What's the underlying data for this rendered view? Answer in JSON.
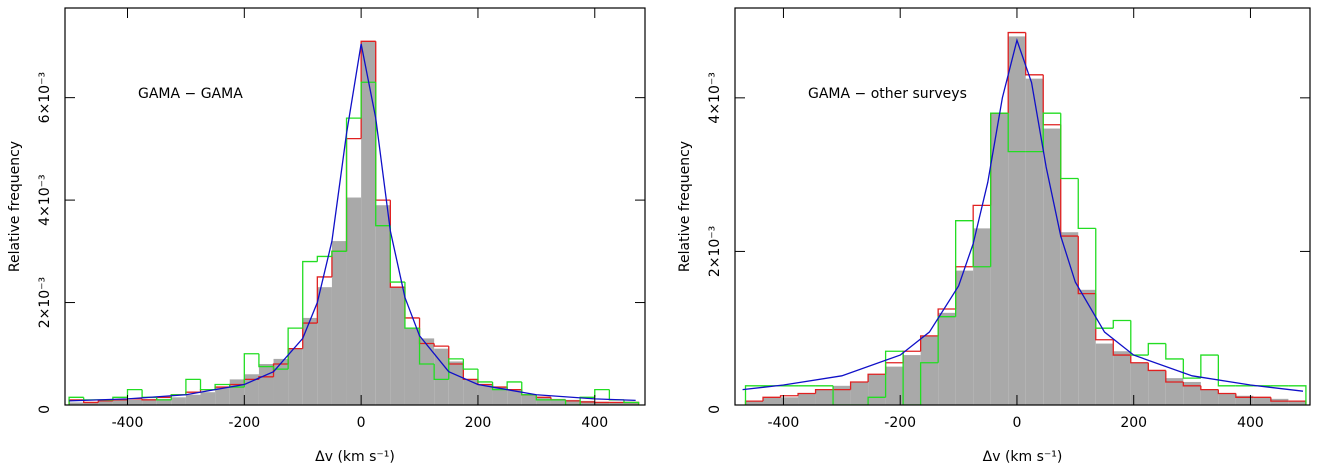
{
  "chart_data": [
    {
      "type": "histogram",
      "annotation": "GAMA − GAMA",
      "xlabel": "Δv (km s⁻¹)",
      "ylabel": "Relative frequency",
      "xlim": [
        -507,
        486
      ],
      "ylim": [
        0,
        0.00775
      ],
      "xticks": [
        -400,
        -200,
        0,
        200,
        400
      ],
      "yticks": [
        0,
        {
          "value": 0.002,
          "label": "2×10⁻³"
        },
        {
          "value": 0.004,
          "label": "4×10⁻³"
        },
        {
          "value": 0.006,
          "label": "6×10⁻³"
        }
      ],
      "bins": [
        -500,
        -475,
        -450,
        -425,
        -400,
        -375,
        -350,
        -325,
        -300,
        -275,
        -250,
        -225,
        -200,
        -175,
        -150,
        -125,
        -100,
        -75,
        -50,
        -25,
        0,
        25,
        50,
        75,
        100,
        125,
        150,
        175,
        200,
        225,
        250,
        275,
        300,
        325,
        350,
        375,
        400,
        425,
        450,
        475
      ],
      "series": [
        {
          "color": "#a9a9a9",
          "fill": true,
          "values": [
            5e-05,
            5e-05,
            8e-05,
            0.0001,
            0.0001,
            0.00012,
            0.00012,
            0.00015,
            0.0002,
            0.00025,
            0.00035,
            0.0005,
            0.0006,
            0.0008,
            0.0009,
            0.0011,
            0.0017,
            0.0023,
            0.0032,
            0.00405,
            0.0071,
            0.0039,
            0.0023,
            0.0015,
            0.0013,
            0.0011,
            0.00085,
            0.0005,
            0.0004,
            0.00035,
            0.0003,
            0.0002,
            0.00015,
            0.00012,
            0.0001,
            8e-05,
            6e-05,
            5e-05,
            5e-05
          ]
        },
        {
          "color": "#e02020",
          "fill": false,
          "values": [
            0.0001,
            5e-05,
            8e-05,
            0.0001,
            0.00012,
            0.0001,
            0.00015,
            0.0002,
            0.00025,
            0.0003,
            0.00035,
            0.0004,
            0.0005,
            0.00055,
            0.0008,
            0.0011,
            0.0016,
            0.0025,
            0.003,
            0.0052,
            0.0071,
            0.004,
            0.0023,
            0.0017,
            0.0012,
            0.00115,
            0.0008,
            0.0005,
            0.0004,
            0.00035,
            0.0003,
            0.0002,
            0.00015,
            0.0001,
            8e-05,
            6e-05,
            5e-05,
            5e-05,
            5e-05
          ]
        },
        {
          "color": "#22dd22",
          "fill": false,
          "values": [
            0.00015,
            0.0001,
            0.0001,
            0.00015,
            0.0003,
            0.00015,
            0.0001,
            0.0002,
            0.0005,
            0.0003,
            0.0004,
            0.00035,
            0.001,
            0.00075,
            0.0007,
            0.0015,
            0.0028,
            0.0029,
            0.003,
            0.0056,
            0.0063,
            0.0035,
            0.0024,
            0.0015,
            0.0008,
            0.0005,
            0.0009,
            0.0007,
            0.00045,
            0.0003,
            0.00045,
            0.0002,
            0.0001,
            0.0001,
            0,
            0.00015,
            0.0003,
            0.0001,
            5e-05
          ]
        }
      ],
      "curve": {
        "color": "#1010c8",
        "x": [
          -500,
          -400,
          -300,
          -200,
          -150,
          -100,
          -75,
          -50,
          -25,
          0,
          25,
          50,
          75,
          100,
          150,
          200,
          300,
          400,
          470
        ],
        "values": [
          8e-05,
          0.00012,
          0.0002,
          0.0004,
          0.00065,
          0.0013,
          0.002,
          0.0032,
          0.0053,
          0.00705,
          0.0056,
          0.0034,
          0.0021,
          0.00135,
          0.00065,
          0.0004,
          0.0002,
          0.00012,
          9e-05
        ]
      }
    },
    {
      "type": "histogram",
      "annotation": "GAMA − other surveys",
      "xlabel": "Δv (km s⁻¹)",
      "ylabel": "Relative frequency",
      "xlim": [
        -483,
        502
      ],
      "ylim": [
        0,
        0.00517
      ],
      "xticks": [
        -400,
        -200,
        0,
        200,
        400
      ],
      "yticks": [
        0,
        {
          "value": 0.002,
          "label": "2×10⁻³"
        },
        {
          "value": 0.004,
          "label": "4×10⁻³"
        }
      ],
      "bins": [
        -465,
        -435,
        -405,
        -375,
        -345,
        -315,
        -285,
        -255,
        -225,
        -195,
        -165,
        -135,
        -105,
        -75,
        -45,
        -15,
        15,
        45,
        75,
        105,
        135,
        165,
        195,
        225,
        255,
        285,
        315,
        345,
        375,
        405,
        435,
        465,
        495
      ],
      "series": [
        {
          "color": "#a9a9a9",
          "fill": true,
          "values": [
            5e-05,
            0.0001,
            0.0001,
            0.00015,
            0.0002,
            0.00025,
            0.0003,
            0.0004,
            0.0005,
            0.00065,
            0.0009,
            0.0012,
            0.00175,
            0.0023,
            0.0038,
            0.0048,
            0.00425,
            0.0036,
            0.00225,
            0.0015,
            0.0008,
            0.0007,
            0.00055,
            0.00045,
            0.00035,
            0.0003,
            0.0002,
            0.00015,
            0.00012,
            0.0001,
            8e-05,
            5e-05
          ]
        },
        {
          "color": "#e02020",
          "fill": false,
          "values": [
            5e-05,
            0.0001,
            0.00012,
            0.00015,
            0.0002,
            0.0002,
            0.0003,
            0.0004,
            0.00055,
            0.0007,
            0.0009,
            0.00125,
            0.0018,
            0.0026,
            0.0038,
            0.00485,
            0.0043,
            0.00365,
            0.0022,
            0.00145,
            0.00085,
            0.00065,
            0.00055,
            0.00045,
            0.0003,
            0.00025,
            0.0002,
            0.00015,
            0.0001,
            0.0001,
            5e-05,
            5e-05
          ]
        },
        {
          "color": "#22dd22",
          "fill": false,
          "values": [
            0.00025,
            0.00025,
            0.00025,
            0.00025,
            0.00025,
            0,
            0,
            0.0001,
            0.0007,
            0,
            0.00055,
            0.00115,
            0.0024,
            0.0018,
            0.0038,
            0.0033,
            0.0033,
            0.0038,
            0.00295,
            0.0023,
            0.001,
            0.0011,
            0.00065,
            0.0008,
            0.0006,
            0.00035,
            0.00065,
            0.00025,
            0.00025,
            0.00025,
            0.00025,
            0.00025
          ]
        }
      ],
      "curve": {
        "color": "#1010c8",
        "x": [
          -470,
          -400,
          -300,
          -200,
          -150,
          -100,
          -75,
          -50,
          -25,
          0,
          25,
          50,
          75,
          100,
          150,
          200,
          300,
          400,
          490
        ],
        "values": [
          0.0002,
          0.00026,
          0.00038,
          0.00065,
          0.00095,
          0.00155,
          0.0021,
          0.0029,
          0.004,
          0.00475,
          0.0042,
          0.0031,
          0.0022,
          0.0016,
          0.00095,
          0.00065,
          0.00038,
          0.00026,
          0.00018
        ]
      }
    }
  ]
}
